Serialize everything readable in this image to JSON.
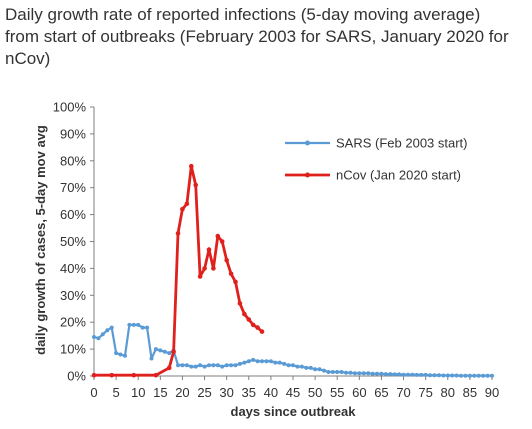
{
  "chart_data": {
    "type": "line",
    "title_lines": [
      "Daily growth rate of reported infections (5-day moving average)",
      "from start of outbreaks (February 2003 for SARS, January 2020 for",
      "nCov)"
    ],
    "xlabel": "days since outbreak",
    "ylabel": "daily growth of cases, 5-day mov avg",
    "xlim": [
      0,
      90
    ],
    "ylim": [
      0,
      100
    ],
    "x_ticks": [
      "0",
      "5",
      "10",
      "15",
      "20",
      "25",
      "30",
      "35",
      "40",
      "45",
      "50",
      "55",
      "60",
      "65",
      "70",
      "75",
      "80",
      "85",
      "90"
    ],
    "y_ticks": [
      "0%",
      "10%",
      "20%",
      "30%",
      "40%",
      "50%",
      "60%",
      "70%",
      "80%",
      "90%",
      "100%"
    ],
    "grid": false,
    "legend_position": "top-right",
    "series": [
      {
        "name": "SARS (Feb 2003 start)",
        "color": "#5b9bd5",
        "x": [
          0,
          1,
          2,
          3,
          4,
          5,
          6,
          7,
          8,
          9,
          10,
          11,
          12,
          13,
          14,
          15,
          16,
          17,
          18,
          19,
          20,
          21,
          22,
          23,
          24,
          25,
          26,
          27,
          28,
          29,
          30,
          31,
          32,
          33,
          34,
          35,
          36,
          37,
          38,
          39,
          40,
          41,
          42,
          43,
          44,
          45,
          46,
          47,
          48,
          49,
          50,
          51,
          52,
          53,
          54,
          55,
          56,
          57,
          58,
          59,
          60,
          61,
          62,
          63,
          64,
          65,
          66,
          67,
          68,
          69,
          70,
          71,
          72,
          73,
          74,
          75,
          76,
          77,
          78,
          79,
          80,
          81,
          82,
          83,
          84,
          85,
          86,
          87,
          88,
          89,
          90
        ],
        "y": [
          14.5,
          14,
          15.5,
          17,
          18,
          8.5,
          8,
          7.5,
          19,
          19,
          19,
          18,
          18,
          6.5,
          10,
          9.5,
          9,
          8.5,
          9.5,
          4,
          4,
          4,
          3.5,
          3.5,
          4,
          3.5,
          4,
          4,
          4,
          3.5,
          4,
          4,
          4,
          4.5,
          5,
          5.5,
          6,
          5.5,
          5.5,
          5.5,
          5.5,
          5,
          5,
          4.5,
          4,
          4,
          3.5,
          3.5,
          3,
          3,
          2.5,
          2.5,
          2,
          1.5,
          1.5,
          1.5,
          1.5,
          1.2,
          1.2,
          1,
          1,
          1,
          1,
          0.8,
          0.8,
          0.8,
          0.7,
          0.7,
          0.6,
          0.6,
          0.5,
          0.5,
          0.5,
          0.4,
          0.4,
          0.4,
          0.3,
          0.3,
          0.3,
          0.2,
          0.2,
          0.2,
          0.2,
          0.1,
          0.1,
          0.1,
          0.1,
          0.1,
          0.1,
          0.1,
          0.1
        ]
      },
      {
        "name": "nCov (Jan 2020 start)",
        "color": "#e0201c",
        "x": [
          0,
          4,
          9,
          14,
          17,
          18,
          19,
          20,
          21,
          22,
          23,
          24,
          25,
          26,
          27,
          28,
          29,
          30,
          31,
          32,
          33,
          34,
          35,
          36,
          37,
          38
        ],
        "y": [
          0.3,
          0.3,
          0.3,
          0.3,
          3,
          9,
          53,
          62,
          64,
          78,
          71,
          37,
          40,
          47,
          40,
          52,
          50,
          43,
          38,
          35,
          27,
          23,
          21,
          19,
          18,
          16.5
        ]
      }
    ]
  }
}
